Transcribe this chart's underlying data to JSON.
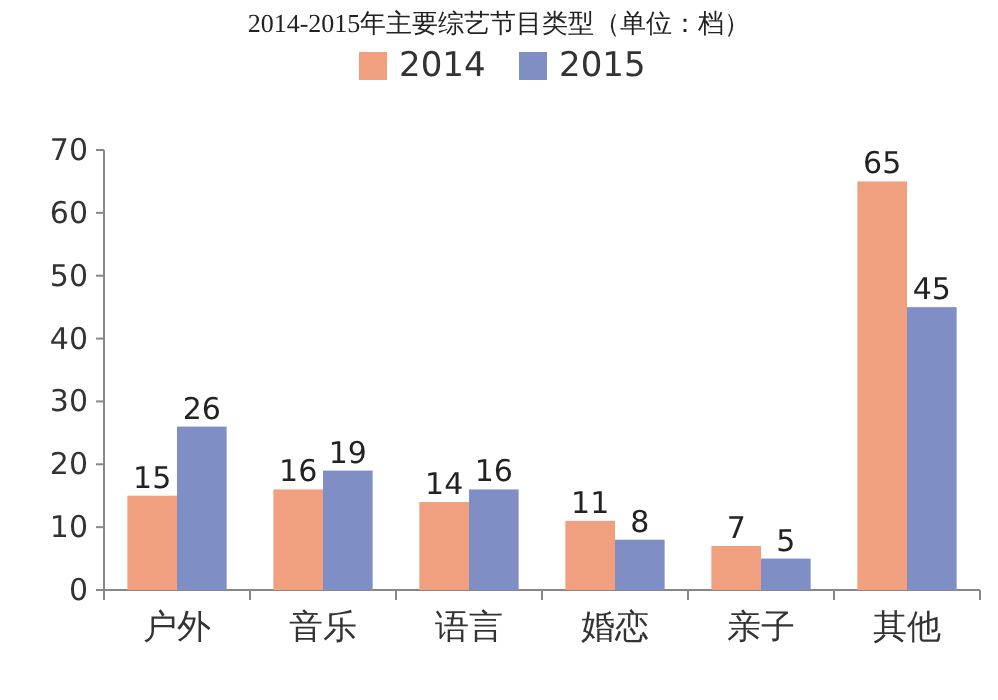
{
  "chart_data": {
    "type": "bar",
    "title": "2014-2015年主要综艺节目类型（单位：档）",
    "categories": [
      "户外",
      "音乐",
      "语言",
      "婚恋",
      "亲子",
      "其他"
    ],
    "series": [
      {
        "name": "2014",
        "color": "#f0a07e",
        "values": [
          15,
          16,
          14,
          11,
          7,
          65
        ]
      },
      {
        "name": "2015",
        "color": "#7f8fc6",
        "values": [
          26,
          19,
          16,
          8,
          5,
          45
        ]
      }
    ],
    "ylim": [
      0,
      70
    ],
    "yticks": [
      0,
      10,
      20,
      30,
      40,
      50,
      60,
      70
    ],
    "data_labels": true,
    "legend": "top"
  }
}
